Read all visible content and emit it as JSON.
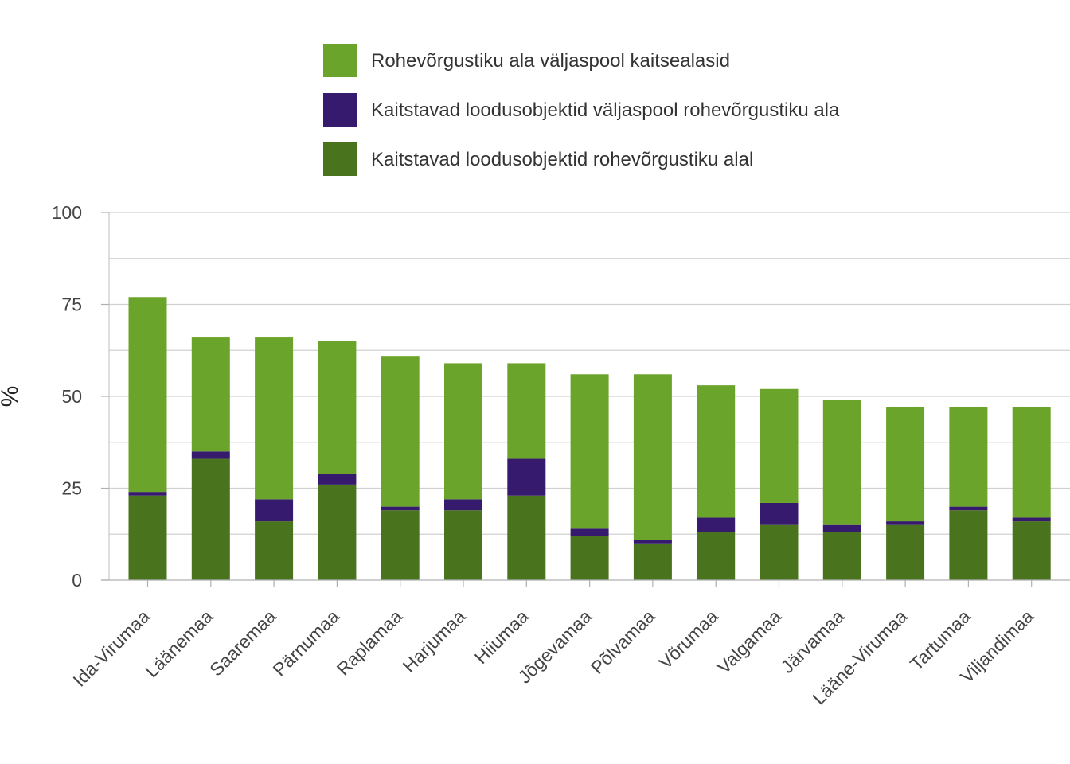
{
  "chart_data": {
    "type": "bar",
    "stacked": true,
    "ylabel": "%",
    "xlabel": "",
    "ylim": [
      0,
      100
    ],
    "yticks": [
      0,
      25,
      50,
      75,
      100
    ],
    "grid": true,
    "legend_position": "top",
    "categories": [
      "Ida-Virumaa",
      "Läänemaa",
      "Saaremaa",
      "Pärnumaa",
      "Raplamaa",
      "Harjumaa",
      "Hiiumaa",
      "Jõgevamaa",
      "Põlvamaa",
      "Võrumaa",
      "Valgamaa",
      "Järvamaa",
      "Lääne-Virumaa",
      "Tartumaa",
      "Viljandimaa"
    ],
    "series": [
      {
        "name": "Kaitstavad loodusobjektid rohevõrgustiku alal",
        "color": "#4a731e",
        "values": [
          23,
          33,
          16,
          26,
          19,
          19,
          23,
          12,
          10,
          13,
          15,
          13,
          15,
          19,
          16
        ]
      },
      {
        "name": "Kaitstavad loodusobjektid väljaspool rohevõrgustiku ala",
        "color": "#361a6e",
        "values": [
          1,
          2,
          6,
          3,
          1,
          3,
          10,
          2,
          1,
          4,
          6,
          2,
          1,
          1,
          1
        ]
      },
      {
        "name": "Rohevõrgustiku ala väljaspool kaitsealasid",
        "color": "#6ba42a",
        "values": [
          53,
          31,
          44,
          36,
          41,
          37,
          26,
          42,
          45,
          36,
          31,
          34,
          31,
          27,
          30
        ]
      }
    ],
    "legend_order": [
      2,
      1,
      0
    ]
  }
}
